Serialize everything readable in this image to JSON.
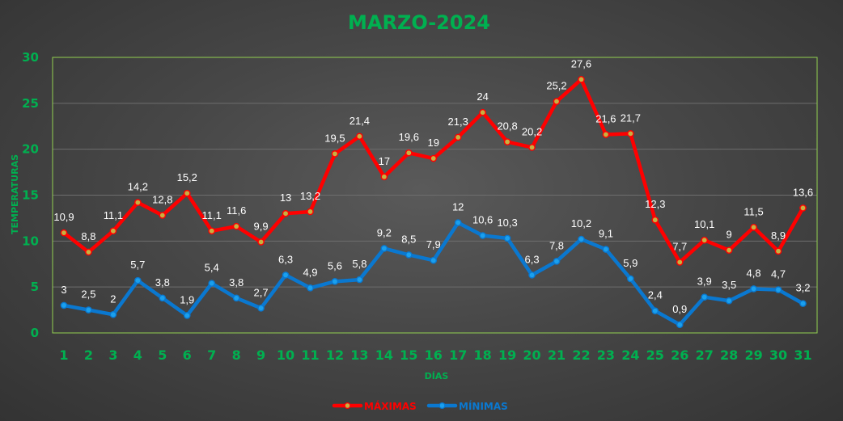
{
  "chart_data": {
    "type": "line",
    "title": "MARZO-2024",
    "xlabel": "DÍAS",
    "ylabel": "TEMPERATURAS",
    "categories": [
      "1",
      "2",
      "3",
      "4",
      "5",
      "6",
      "7",
      "8",
      "9",
      "10",
      "11",
      "12",
      "13",
      "14",
      "15",
      "16",
      "17",
      "18",
      "19",
      "20",
      "21",
      "22",
      "23",
      "24",
      "25",
      "26",
      "27",
      "28",
      "29",
      "30",
      "31"
    ],
    "ylim": [
      0,
      30
    ],
    "yticks": [
      "0",
      "5",
      "10",
      "15",
      "20",
      "25",
      "30"
    ],
    "grid": true,
    "legend": "bottom",
    "series": [
      {
        "name": "MÁXIMAS",
        "color": "#ff0000",
        "marker_color": "#c8b040",
        "values": [
          10.9,
          8.8,
          11.1,
          14.2,
          12.8,
          15.2,
          11.1,
          11.6,
          9.9,
          13,
          13.2,
          19.5,
          21.4,
          17,
          19.6,
          19,
          21.3,
          24,
          20.8,
          20.2,
          25.2,
          27.6,
          21.6,
          21.7,
          12.3,
          7.7,
          10.1,
          9,
          11.5,
          8.9,
          13.6
        ],
        "labels": [
          "10,9",
          "8,8",
          "11,1",
          "14,2",
          "12,8",
          "15,2",
          "11,1",
          "11,6",
          "9,9",
          "13",
          "13,2",
          "19,5",
          "21,4",
          "17",
          "19,6",
          "19",
          "21,3",
          "24",
          "20,8",
          "20,2",
          "25,2",
          "27,6",
          "21,6",
          "21,7",
          "12,3",
          "7,7",
          "10,1",
          "9",
          "11,5",
          "8,9",
          "13,6"
        ]
      },
      {
        "name": "MÍNIMAS",
        "color": "#0a78d0",
        "marker_color": "#1aa0ee",
        "values": [
          3,
          2.5,
          2,
          5.7,
          3.8,
          1.9,
          5.4,
          3.8,
          2.7,
          6.3,
          4.9,
          5.6,
          5.8,
          9.2,
          8.5,
          7.9,
          12,
          10.6,
          10.3,
          6.3,
          7.8,
          10.2,
          9.1,
          5.9,
          2.4,
          0.9,
          3.9,
          3.5,
          4.8,
          4.7,
          3.2
        ],
        "labels": [
          "3",
          "2,5",
          "2",
          "5,7",
          "3,8",
          "1,9",
          "5,4",
          "3,8",
          "2,7",
          "6,3",
          "4,9",
          "5,6",
          "5,8",
          "9,2",
          "8,5",
          "7,9",
          "12",
          "10,6",
          "10,3",
          "6,3",
          "7,8",
          "10,2",
          "9,1",
          "5,9",
          "2,4",
          "0,9",
          "3,9",
          "3,5",
          "4,8",
          "4,7",
          "3,2"
        ]
      }
    ],
    "colors": {
      "title": "#00b050",
      "ticks": "#00b050",
      "axis_label": "#00b050",
      "plot_border": "#92d050",
      "grid": "#6e6e6e",
      "data_label": "#ffffff"
    }
  }
}
